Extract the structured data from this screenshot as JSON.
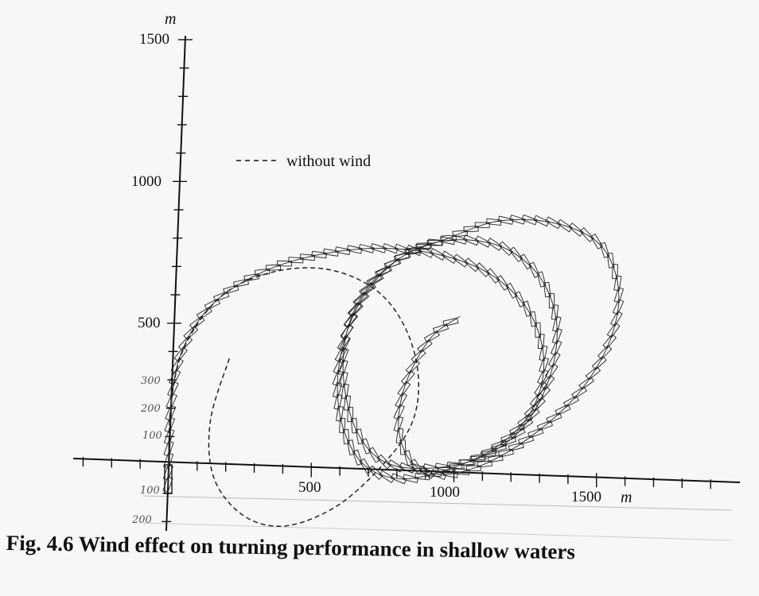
{
  "caption": "Fig. 4.6 Wind effect on turning performance in shallow waters",
  "chart_data": {
    "type": "line",
    "title": "",
    "x_unit": "m",
    "y_unit": "m",
    "xlim": [
      -50,
      2000
    ],
    "ylim": [
      -220,
      1530
    ],
    "x_ticks": [
      {
        "value": 500,
        "label": "500"
      },
      {
        "value": 1000,
        "label": "1000"
      },
      {
        "value": 1500,
        "label": "1500"
      }
    ],
    "y_ticks": [
      {
        "value": 500,
        "label": "500"
      },
      {
        "value": 1000,
        "label": "1000"
      },
      {
        "value": 1500,
        "label": "1500"
      }
    ],
    "handwritten_y_ticks": [
      {
        "value": 300,
        "label": "300"
      },
      {
        "value": 200,
        "label": "200"
      },
      {
        "value": 100,
        "label": "100"
      },
      {
        "value": -100,
        "label": "100"
      },
      {
        "value": -200,
        "label": "200"
      }
    ],
    "legend": {
      "placement": "top-left",
      "entries": [
        {
          "label": "without wind",
          "style": "dashed"
        }
      ]
    },
    "series": [
      {
        "style": "dashed",
        "x": [
          0,
          0,
          40,
          160,
          330,
          520,
          690,
          800,
          860,
          850,
          760,
          600,
          420,
          270,
          160,
          140,
          200
        ],
        "y": [
          0,
          220,
          420,
          600,
          690,
          710,
          650,
          530,
          360,
          190,
          40,
          -120,
          -200,
          -170,
          -40,
          160,
          390
        ]
      },
      {
        "style": "ship-track",
        "x": [
          0,
          0,
          30,
          130,
          300,
          500,
          720,
          940,
          1120,
          1250,
          1300,
          1260,
          1140,
          980,
          820,
          690,
          610,
          580,
          600,
          660,
          760,
          880,
          1020,
          1160,
          1280,
          1340,
          1320,
          1230,
          1080,
          900,
          750,
          650,
          600,
          610,
          680,
          800,
          940
        ],
        "y": [
          -80,
          200,
          400,
          570,
          690,
          760,
          790,
          770,
          700,
          570,
          400,
          230,
          100,
          20,
          -20,
          20,
          140,
          300,
          470,
          620,
          740,
          810,
          830,
          800,
          700,
          540,
          350,
          170,
          60,
          20,
          40,
          150,
          330,
          510,
          660,
          770,
          830
        ]
      },
      {
        "style": "ship-track",
        "x": [
          940,
          1120,
          1320,
          1480,
          1550,
          1530,
          1430,
          1270,
          1100,
          950,
          850,
          800,
          820,
          900,
          1000
        ],
        "y": [
          830,
          900,
          900,
          830,
          680,
          500,
          310,
          150,
          40,
          0,
          40,
          160,
          320,
          480,
          560
        ]
      }
    ]
  }
}
